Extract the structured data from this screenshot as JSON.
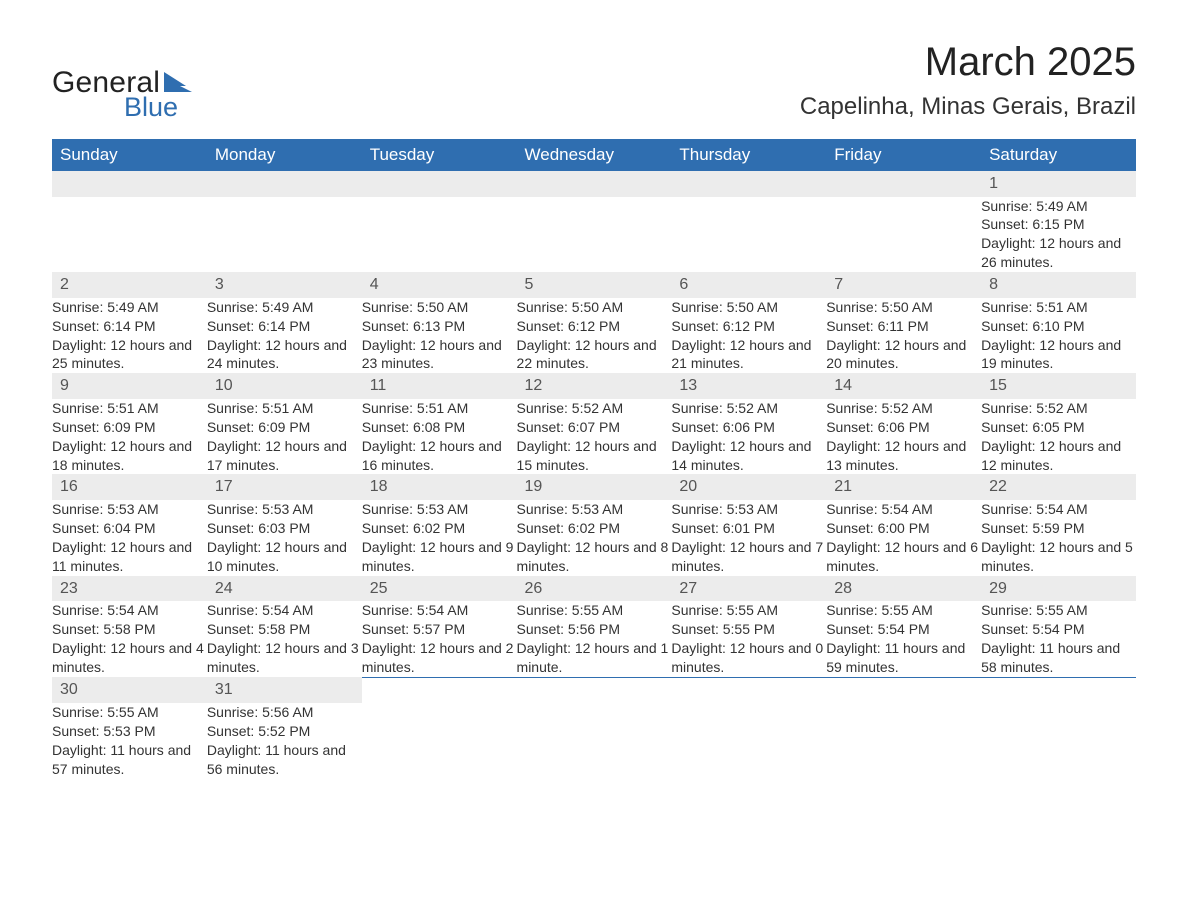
{
  "logo": {
    "word1": "General",
    "word2": "Blue",
    "shape_color": "#2f6eb0",
    "text_color": "#222"
  },
  "title": "March 2025",
  "location": "Capelinha, Minas Gerais, Brazil",
  "colors": {
    "header_bg": "#2f6eb0",
    "header_text": "#ffffff",
    "daynum_bg": "#ececec",
    "row_border": "#2f6eb0",
    "body_text": "#333333"
  },
  "day_headers": [
    "Sunday",
    "Monday",
    "Tuesday",
    "Wednesday",
    "Thursday",
    "Friday",
    "Saturday"
  ],
  "weeks": [
    [
      null,
      null,
      null,
      null,
      null,
      null,
      {
        "d": "1",
        "sr": "Sunrise: 5:49 AM",
        "ss": "Sunset: 6:15 PM",
        "dl": "Daylight: 12 hours and 26 minutes."
      }
    ],
    [
      {
        "d": "2",
        "sr": "Sunrise: 5:49 AM",
        "ss": "Sunset: 6:14 PM",
        "dl": "Daylight: 12 hours and 25 minutes."
      },
      {
        "d": "3",
        "sr": "Sunrise: 5:49 AM",
        "ss": "Sunset: 6:14 PM",
        "dl": "Daylight: 12 hours and 24 minutes."
      },
      {
        "d": "4",
        "sr": "Sunrise: 5:50 AM",
        "ss": "Sunset: 6:13 PM",
        "dl": "Daylight: 12 hours and 23 minutes."
      },
      {
        "d": "5",
        "sr": "Sunrise: 5:50 AM",
        "ss": "Sunset: 6:12 PM",
        "dl": "Daylight: 12 hours and 22 minutes."
      },
      {
        "d": "6",
        "sr": "Sunrise: 5:50 AM",
        "ss": "Sunset: 6:12 PM",
        "dl": "Daylight: 12 hours and 21 minutes."
      },
      {
        "d": "7",
        "sr": "Sunrise: 5:50 AM",
        "ss": "Sunset: 6:11 PM",
        "dl": "Daylight: 12 hours and 20 minutes."
      },
      {
        "d": "8",
        "sr": "Sunrise: 5:51 AM",
        "ss": "Sunset: 6:10 PM",
        "dl": "Daylight: 12 hours and 19 minutes."
      }
    ],
    [
      {
        "d": "9",
        "sr": "Sunrise: 5:51 AM",
        "ss": "Sunset: 6:09 PM",
        "dl": "Daylight: 12 hours and 18 minutes."
      },
      {
        "d": "10",
        "sr": "Sunrise: 5:51 AM",
        "ss": "Sunset: 6:09 PM",
        "dl": "Daylight: 12 hours and 17 minutes."
      },
      {
        "d": "11",
        "sr": "Sunrise: 5:51 AM",
        "ss": "Sunset: 6:08 PM",
        "dl": "Daylight: 12 hours and 16 minutes."
      },
      {
        "d": "12",
        "sr": "Sunrise: 5:52 AM",
        "ss": "Sunset: 6:07 PM",
        "dl": "Daylight: 12 hours and 15 minutes."
      },
      {
        "d": "13",
        "sr": "Sunrise: 5:52 AM",
        "ss": "Sunset: 6:06 PM",
        "dl": "Daylight: 12 hours and 14 minutes."
      },
      {
        "d": "14",
        "sr": "Sunrise: 5:52 AM",
        "ss": "Sunset: 6:06 PM",
        "dl": "Daylight: 12 hours and 13 minutes."
      },
      {
        "d": "15",
        "sr": "Sunrise: 5:52 AM",
        "ss": "Sunset: 6:05 PM",
        "dl": "Daylight: 12 hours and 12 minutes."
      }
    ],
    [
      {
        "d": "16",
        "sr": "Sunrise: 5:53 AM",
        "ss": "Sunset: 6:04 PM",
        "dl": "Daylight: 12 hours and 11 minutes."
      },
      {
        "d": "17",
        "sr": "Sunrise: 5:53 AM",
        "ss": "Sunset: 6:03 PM",
        "dl": "Daylight: 12 hours and 10 minutes."
      },
      {
        "d": "18",
        "sr": "Sunrise: 5:53 AM",
        "ss": "Sunset: 6:02 PM",
        "dl": "Daylight: 12 hours and 9 minutes."
      },
      {
        "d": "19",
        "sr": "Sunrise: 5:53 AM",
        "ss": "Sunset: 6:02 PM",
        "dl": "Daylight: 12 hours and 8 minutes."
      },
      {
        "d": "20",
        "sr": "Sunrise: 5:53 AM",
        "ss": "Sunset: 6:01 PM",
        "dl": "Daylight: 12 hours and 7 minutes."
      },
      {
        "d": "21",
        "sr": "Sunrise: 5:54 AM",
        "ss": "Sunset: 6:00 PM",
        "dl": "Daylight: 12 hours and 6 minutes."
      },
      {
        "d": "22",
        "sr": "Sunrise: 5:54 AM",
        "ss": "Sunset: 5:59 PM",
        "dl": "Daylight: 12 hours and 5 minutes."
      }
    ],
    [
      {
        "d": "23",
        "sr": "Sunrise: 5:54 AM",
        "ss": "Sunset: 5:58 PM",
        "dl": "Daylight: 12 hours and 4 minutes."
      },
      {
        "d": "24",
        "sr": "Sunrise: 5:54 AM",
        "ss": "Sunset: 5:58 PM",
        "dl": "Daylight: 12 hours and 3 minutes."
      },
      {
        "d": "25",
        "sr": "Sunrise: 5:54 AM",
        "ss": "Sunset: 5:57 PM",
        "dl": "Daylight: 12 hours and 2 minutes."
      },
      {
        "d": "26",
        "sr": "Sunrise: 5:55 AM",
        "ss": "Sunset: 5:56 PM",
        "dl": "Daylight: 12 hours and 1 minute."
      },
      {
        "d": "27",
        "sr": "Sunrise: 5:55 AM",
        "ss": "Sunset: 5:55 PM",
        "dl": "Daylight: 12 hours and 0 minutes."
      },
      {
        "d": "28",
        "sr": "Sunrise: 5:55 AM",
        "ss": "Sunset: 5:54 PM",
        "dl": "Daylight: 11 hours and 59 minutes."
      },
      {
        "d": "29",
        "sr": "Sunrise: 5:55 AM",
        "ss": "Sunset: 5:54 PM",
        "dl": "Daylight: 11 hours and 58 minutes."
      }
    ],
    [
      {
        "d": "30",
        "sr": "Sunrise: 5:55 AM",
        "ss": "Sunset: 5:53 PM",
        "dl": "Daylight: 11 hours and 57 minutes."
      },
      {
        "d": "31",
        "sr": "Sunrise: 5:56 AM",
        "ss": "Sunset: 5:52 PM",
        "dl": "Daylight: 11 hours and 56 minutes."
      },
      null,
      null,
      null,
      null,
      null
    ]
  ]
}
